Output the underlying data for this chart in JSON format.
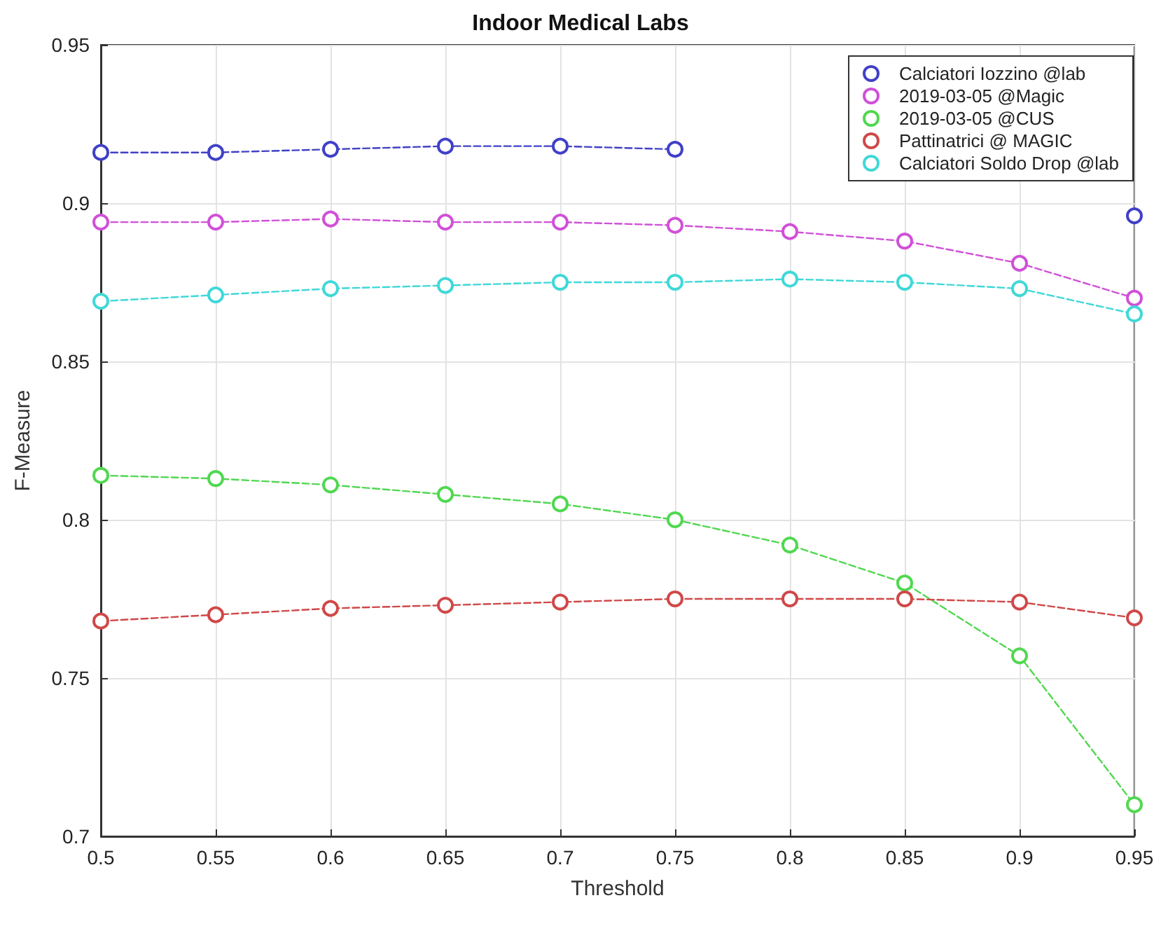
{
  "chart_data": {
    "type": "line",
    "title": "Indoor Medical Labs",
    "xlabel": "Threshold",
    "ylabel": "F-Measure",
    "x": [
      0.5,
      0.55,
      0.6,
      0.65,
      0.7,
      0.75,
      0.8,
      0.85,
      0.9,
      0.95
    ],
    "series": [
      {
        "name": "Calciatori Iozzino @lab",
        "color": "#4040c8",
        "values": [
          0.916,
          0.916,
          0.917,
          0.918,
          0.918,
          0.917,
          null,
          null,
          null,
          0.896
        ]
      },
      {
        "name": "2019-03-05 @Magic",
        "color": "#d050d8",
        "values": [
          0.894,
          0.894,
          0.895,
          0.894,
          0.894,
          0.893,
          0.891,
          0.888,
          0.881,
          0.87
        ]
      },
      {
        "name": "2019-03-05 @CUS",
        "color": "#50d850",
        "values": [
          0.814,
          0.813,
          0.811,
          0.808,
          0.805,
          0.8,
          0.792,
          0.78,
          0.757,
          0.71
        ]
      },
      {
        "name": "Pattinatrici @ MAGIC",
        "color": "#d04848",
        "values": [
          0.768,
          0.77,
          0.772,
          0.773,
          0.774,
          0.775,
          0.775,
          0.775,
          0.774,
          0.769
        ]
      },
      {
        "name": "Calciatori Soldo Drop @lab",
        "color": "#40d8d8",
        "values": [
          0.869,
          0.871,
          0.873,
          0.874,
          0.875,
          0.875,
          0.876,
          0.875,
          0.873,
          0.865
        ]
      }
    ],
    "xlim": [
      0.5,
      0.95
    ],
    "xticks": [
      0.5,
      0.55,
      0.6,
      0.65,
      0.7,
      0.75,
      0.8,
      0.85,
      0.9,
      0.95
    ],
    "ylim": [
      0.7,
      0.95
    ],
    "yticks": [
      0.7,
      0.75,
      0.8,
      0.85,
      0.9,
      0.95
    ],
    "grid": true,
    "legend": "top right",
    "marker": "circle",
    "line_style": "dashed"
  }
}
